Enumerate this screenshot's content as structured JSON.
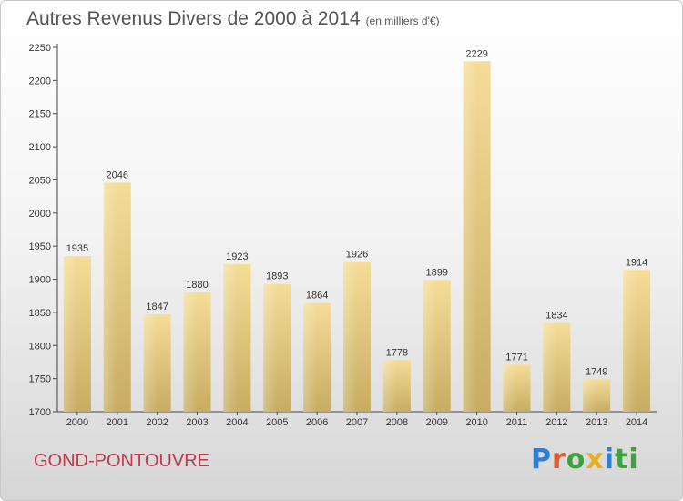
{
  "chart_data": {
    "type": "bar",
    "title": "Autres Revenus Divers de 2000 à 2014",
    "subtitle": "(en milliers d'€)",
    "categories": [
      "2000",
      "2001",
      "2002",
      "2003",
      "2004",
      "2005",
      "2006",
      "2007",
      "2008",
      "2009",
      "2010",
      "2011",
      "2012",
      "2013",
      "2014"
    ],
    "values": [
      1935,
      2046,
      1847,
      1880,
      1923,
      1893,
      1864,
      1926,
      1778,
      1899,
      2229,
      1771,
      1834,
      1749,
      1914
    ],
    "ylim": [
      1700,
      2250
    ],
    "yticks": [
      1700,
      1750,
      1800,
      1850,
      1900,
      1950,
      2000,
      2050,
      2100,
      2150,
      2200,
      2250
    ],
    "xlabel": "",
    "ylabel": "",
    "grid": false,
    "bar_color": "#e8cf86"
  },
  "footer": {
    "city": "GOND-PONTOUVRE",
    "logo_letters": [
      "P",
      "r",
      "o",
      "x",
      "i",
      "ti"
    ]
  }
}
